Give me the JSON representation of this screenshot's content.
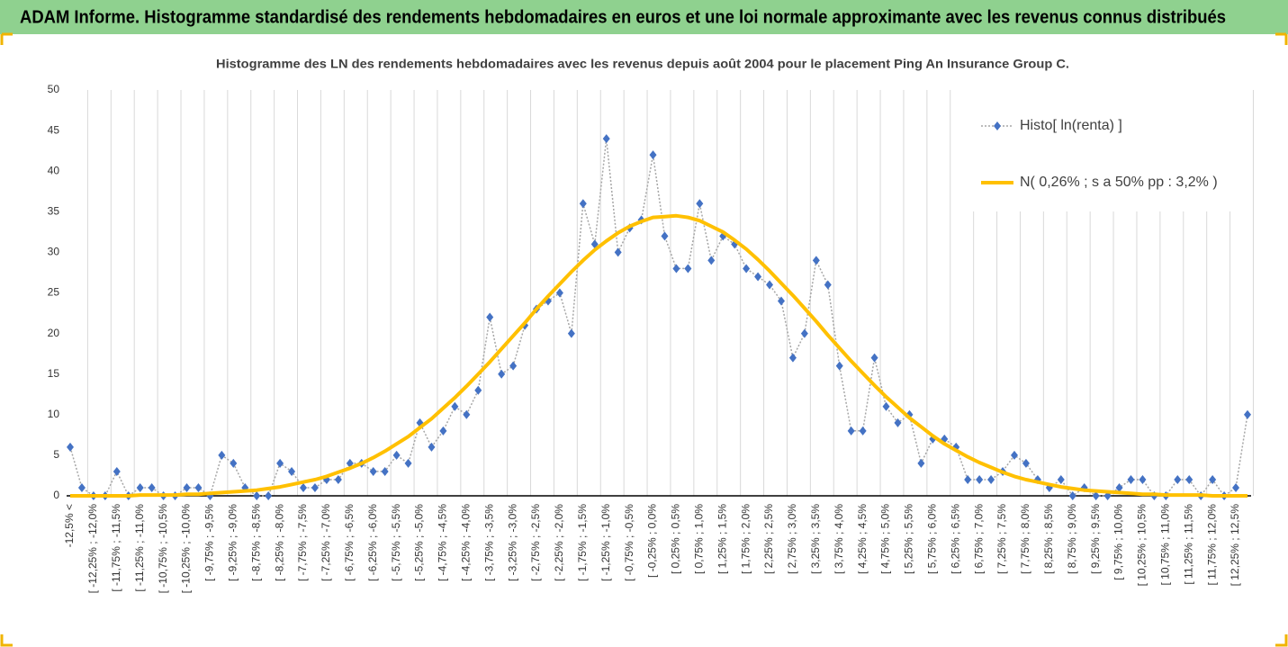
{
  "header": {
    "title": "ADAM Informe. Histogramme standardisé des rendements hebdomadaires en euros et une loi normale approximante avec les revenus connus distribués"
  },
  "chart_data": {
    "type": "line",
    "title": "Histogramme des LN des rendements hebdomadaires avec les revenus depuis août 2004 pour le placement Ping An Insurance Group C.",
    "categories": [
      "-12,5% <",
      null,
      "[ -12,25% ; -12,0%",
      null,
      "[ -11,75% ; -11,5%",
      null,
      "[ -11,25% ; -11,0%",
      null,
      "[ -10,75% ; -10,5%",
      null,
      "[ -10,25% ; -10,0%",
      null,
      "[ -9,75% ; -9,5%",
      null,
      "[ -9,25% ; -9,0%",
      null,
      "[ -8,75% ; -8,5%",
      null,
      "[ -8,25% ; -8,0%",
      null,
      "[ -7,75% ; -7,5%",
      null,
      "[ -7,25% ; -7,0%",
      null,
      "[ -6,75% ; -6,5%",
      null,
      "[ -6,25% ; -6,0%",
      null,
      "[ -5,75% ; -5,5%",
      null,
      "[ -5,25% ; -5,0%",
      null,
      "[ -4,75% ; -4,5%",
      null,
      "[ -4,25% ; -4,0%",
      null,
      "[ -3,75% ; -3,5%",
      null,
      "[ -3,25% ; -3,0%",
      null,
      "[ -2,75% ; -2,5%",
      null,
      "[ -2,25% ; -2,0%",
      null,
      "[ -1,75% ; -1,5%",
      null,
      "[ -1,25% ; -1,0%",
      null,
      "[ -0,75% ; -0,5%",
      null,
      "[ -0,25% ; 0,0%",
      null,
      "[ 0,25% ; 0,5%",
      null,
      "[ 0,75% ; 1,0%",
      null,
      "[ 1,25% ; 1,5%",
      null,
      "[ 1,75% ; 2,0%",
      null,
      "[ 2,25% ; 2,5%",
      null,
      "[ 2,75% ; 3,0%",
      null,
      "[ 3,25% ; 3,5%",
      null,
      "[ 3,75% ; 4,0%",
      null,
      "[ 4,25% ; 4,5%",
      null,
      "[ 4,75% ; 5,0%",
      null,
      "[ 5,25% ; 5,5%",
      null,
      "[ 5,75% ; 6,0%",
      null,
      "[ 6,25% ; 6,5%",
      null,
      "[ 6,75% ; 7,0%",
      null,
      "[ 7,25% ; 7,5%",
      null,
      "[ 7,75% ; 8,0%",
      null,
      "[ 8,25% ; 8,5%",
      null,
      "[ 8,75% ; 9,0%",
      null,
      "[ 9,25% ; 9,5%",
      null,
      "[ 9,75% ; 10,0%",
      null,
      "[ 10,25% ; 10,5%",
      null,
      "[ 10,75% ; 11,0%",
      null,
      "[ 11,25% ; 11,5%",
      null,
      "[ 11,75% ; 12,0%",
      null,
      "[ 12,25% ; 12,5%",
      null
    ],
    "series": [
      {
        "name": "Histo[ ln(renta) ]",
        "color": "#4472c4",
        "values": [
          6,
          1,
          0,
          0,
          3,
          0,
          1,
          1,
          0,
          0,
          1,
          1,
          0,
          5,
          4,
          1,
          0,
          0,
          4,
          3,
          1,
          1,
          2,
          2,
          4,
          4,
          3,
          3,
          5,
          4,
          9,
          6,
          8,
          11,
          10,
          13,
          22,
          15,
          16,
          21,
          23,
          24,
          25,
          20,
          36,
          31,
          44,
          30,
          33,
          34,
          42,
          32,
          28,
          28,
          36,
          29,
          32,
          31,
          28,
          27,
          26,
          24,
          17,
          20,
          29,
          26,
          16,
          8,
          8,
          17,
          11,
          9,
          10,
          4,
          7,
          7,
          6,
          2,
          2,
          2,
          3,
          5,
          4,
          2,
          1,
          2,
          0,
          1,
          0,
          0,
          1,
          2,
          2,
          0,
          0,
          2,
          2,
          0,
          2,
          0,
          1,
          10
        ]
      },
      {
        "name": "N( 0,26% ; s a 50% pp : 3,2% )",
        "color": "#ffc000",
        "values": [
          0.0,
          0.0,
          0.0,
          0.0,
          0.0,
          0.0,
          0.1,
          0.1,
          0.1,
          0.1,
          0.2,
          0.2,
          0.3,
          0.4,
          0.5,
          0.6,
          0.7,
          0.9,
          1.1,
          1.4,
          1.7,
          2.0,
          2.4,
          2.9,
          3.4,
          4.0,
          4.7,
          5.5,
          6.4,
          7.3,
          8.4,
          9.5,
          10.8,
          12.1,
          13.5,
          15.0,
          16.5,
          18.1,
          19.7,
          21.3,
          23.0,
          24.6,
          26.1,
          27.6,
          29.0,
          30.3,
          31.4,
          32.4,
          33.2,
          33.8,
          34.3,
          34.4,
          34.5,
          34.3,
          33.9,
          33.2,
          32.5,
          31.5,
          30.4,
          29.1,
          27.7,
          26.2,
          24.7,
          23.1,
          21.5,
          19.8,
          18.2,
          16.6,
          15.1,
          13.6,
          12.2,
          10.9,
          9.6,
          8.5,
          7.4,
          6.4,
          5.6,
          4.8,
          4.1,
          3.5,
          2.9,
          2.4,
          2.0,
          1.7,
          1.4,
          1.1,
          0.9,
          0.7,
          0.6,
          0.5,
          0.4,
          0.3,
          0.2,
          0.2,
          0.1,
          0.1,
          0.1,
          0.1,
          0.0,
          0.0,
          0.0,
          0.0
        ]
      }
    ],
    "ylim": [
      0,
      50
    ],
    "yticks": [
      0,
      5,
      10,
      15,
      20,
      25,
      30,
      35,
      40,
      45,
      50
    ],
    "legend": "top-right"
  }
}
